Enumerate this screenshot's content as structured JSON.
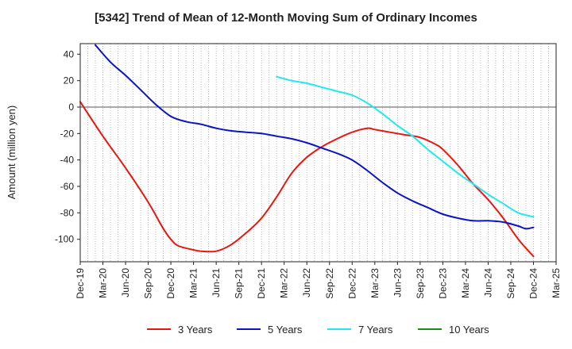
{
  "chart_data": {
    "type": "line",
    "title": "[5342]  Trend of Mean of 12-Month Moving Sum of Ordinary Incomes",
    "xlabel": "",
    "ylabel": "Amount (million yen)",
    "ylim": [
      -117,
      48
    ],
    "yticks": [
      40,
      20,
      0,
      -20,
      -40,
      -60,
      -80,
      -100
    ],
    "ytick_labels": [
      "40",
      "20",
      "0",
      "-20",
      "-40",
      "-60",
      "-80",
      "-100"
    ],
    "x_range": [
      0,
      63
    ],
    "xticks": [
      0,
      3,
      6,
      9,
      12,
      15,
      18,
      21,
      24,
      27,
      30,
      33,
      36,
      39,
      42,
      45,
      48,
      51,
      54,
      57,
      60,
      63
    ],
    "xtick_labels": [
      "Dec-19",
      "Mar-20",
      "Jun-20",
      "Sep-20",
      "Dec-20",
      "Mar-21",
      "Jun-21",
      "Sep-21",
      "Dec-21",
      "Mar-22",
      "Jun-22",
      "Sep-22",
      "Dec-22",
      "Mar-23",
      "Jun-23",
      "Sep-23",
      "Dec-23",
      "Mar-24",
      "Jun-24",
      "Sep-24",
      "Dec-24",
      "Mar-25"
    ],
    "grid": "vertical dotted",
    "legend_position": "bottom",
    "series": [
      {
        "name": "3 Years",
        "color": "#e8160f",
        "points": [
          [
            0,
            4
          ],
          [
            3,
            -22
          ],
          [
            6,
            -46
          ],
          [
            9,
            -72
          ],
          [
            11,
            -92
          ],
          [
            12,
            -100
          ],
          [
            13,
            -105
          ],
          [
            15,
            -108
          ],
          [
            16,
            -109
          ],
          [
            18,
            -109
          ],
          [
            20,
            -104
          ],
          [
            22,
            -95
          ],
          [
            24,
            -84
          ],
          [
            26,
            -68
          ],
          [
            28,
            -50
          ],
          [
            30,
            -38
          ],
          [
            32,
            -30
          ],
          [
            34,
            -24
          ],
          [
            36,
            -19
          ],
          [
            38,
            -16
          ],
          [
            39,
            -17
          ],
          [
            41,
            -19
          ],
          [
            43,
            -21
          ],
          [
            45,
            -23
          ],
          [
            47,
            -28
          ],
          [
            48,
            -32
          ],
          [
            50,
            -44
          ],
          [
            52,
            -58
          ],
          [
            54,
            -70
          ],
          [
            56,
            -84
          ],
          [
            58,
            -100
          ],
          [
            60,
            -113
          ]
        ]
      },
      {
        "name": "5 Years",
        "color": "#0a14c8",
        "points": [
          [
            2,
            47
          ],
          [
            4,
            34
          ],
          [
            6,
            24
          ],
          [
            8,
            13
          ],
          [
            10,
            2
          ],
          [
            12,
            -7
          ],
          [
            14,
            -11
          ],
          [
            16,
            -13
          ],
          [
            18,
            -16
          ],
          [
            20,
            -18
          ],
          [
            22,
            -19
          ],
          [
            24,
            -20
          ],
          [
            26,
            -22
          ],
          [
            28,
            -24
          ],
          [
            30,
            -27
          ],
          [
            32,
            -31
          ],
          [
            34,
            -35
          ],
          [
            36,
            -40
          ],
          [
            38,
            -48
          ],
          [
            40,
            -57
          ],
          [
            42,
            -65
          ],
          [
            44,
            -71
          ],
          [
            46,
            -76
          ],
          [
            48,
            -81
          ],
          [
            50,
            -84
          ],
          [
            52,
            -86
          ],
          [
            54,
            -86
          ],
          [
            56,
            -87
          ],
          [
            58,
            -90
          ],
          [
            59,
            -92
          ],
          [
            60,
            -91
          ]
        ]
      },
      {
        "name": "7 Years",
        "color": "#22e8f0",
        "points": [
          [
            26,
            23
          ],
          [
            28,
            20
          ],
          [
            30,
            18
          ],
          [
            32,
            15
          ],
          [
            34,
            12
          ],
          [
            36,
            9
          ],
          [
            38,
            3
          ],
          [
            40,
            -5
          ],
          [
            42,
            -14
          ],
          [
            44,
            -22
          ],
          [
            46,
            -32
          ],
          [
            48,
            -41
          ],
          [
            50,
            -50
          ],
          [
            52,
            -58
          ],
          [
            54,
            -66
          ],
          [
            56,
            -73
          ],
          [
            58,
            -80
          ],
          [
            60,
            -83
          ]
        ]
      },
      {
        "name": "10 Years",
        "color": "#1a8a1a",
        "points": []
      }
    ]
  }
}
